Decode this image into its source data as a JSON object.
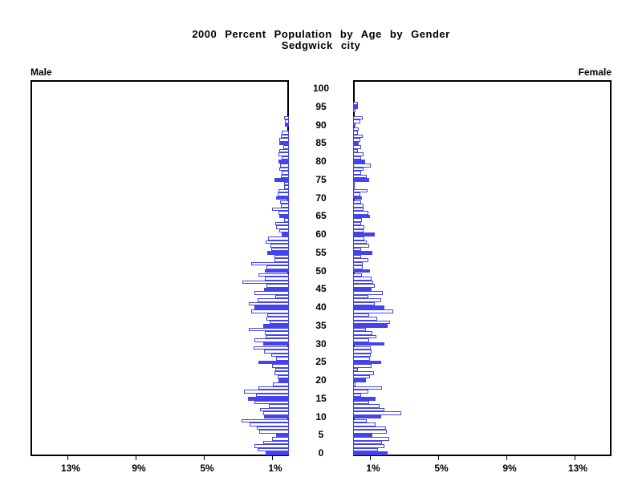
{
  "page": {
    "background": "#ffffff"
  },
  "chart_data": {
    "type": "bar",
    "subtype": "population-pyramid",
    "orientation": "horizontal",
    "title": "2000 Percent Population by Age by Gender",
    "subtitle": "Sedgwick city",
    "left_header": "Male",
    "right_header": "Female",
    "age_axis": {
      "min": 0,
      "max": 100,
      "tick_interval": 5,
      "tick_labels": [
        "0",
        "5",
        "10",
        "15",
        "20",
        "25",
        "30",
        "35",
        "40",
        "45",
        "50",
        "55",
        "60",
        "65",
        "70",
        "75",
        "80",
        "85",
        "90",
        "95",
        "100"
      ]
    },
    "percent_axis": {
      "ticks": [
        1,
        5,
        9,
        13
      ],
      "left_tick_labels": [
        "13%",
        "9%",
        "5%",
        "1%"
      ],
      "right_tick_labels": [
        "1%",
        "5%",
        "9%",
        "13%"
      ],
      "max_percent": 15.1
    },
    "legend": "none",
    "grid": "off",
    "highlight_rule": "bars for ages divisible by 5 are solid filled; other ages are white with blue outline",
    "colors": {
      "bar_outline": "#4444ee",
      "bar_fill_highlight": "#4444ee",
      "bar_fill_normal": "#ffffff",
      "axis": "#000000",
      "text": "#000000"
    },
    "ages": "index of each value equals single year of age, 0 through 100",
    "series": [
      {
        "name": "Male",
        "side": "left",
        "unit": "percent",
        "values": [
          1.38,
          1.82,
          2.04,
          1.49,
          1.0,
          0.75,
          1.76,
          1.9,
          2.32,
          2.79,
          1.44,
          1.51,
          1.71,
          1.18,
          2.0,
          2.39,
          1.91,
          2.64,
          1.8,
          0.94,
          0.6,
          0.66,
          0.86,
          0.78,
          0.97,
          1.8,
          0.75,
          1.05,
          1.44,
          2.05,
          1.5,
          2.0,
          1.38,
          1.41,
          2.33,
          1.49,
          1.13,
          1.33,
          1.28,
          2.22,
          2.01,
          2.35,
          1.84,
          0.78,
          2.04,
          1.46,
          1.33,
          2.73,
          1.41,
          1.8,
          1.4,
          1.3,
          2.22,
          0.85,
          0.87,
          1.25,
          1.05,
          1.07,
          1.38,
          1.21,
          0.42,
          0.55,
          0.77,
          0.78,
          0.27,
          0.58,
          0.63,
          0.99,
          0.47,
          0.5,
          0.77,
          0.67,
          0.61,
          0.28,
          0.27,
          0.85,
          0.49,
          0.44,
          0.55,
          0.52,
          0.63,
          0.42,
          0.63,
          0.55,
          0.34,
          0.55,
          0.55,
          0.45,
          0.42,
          0.0,
          0.24,
          0.24,
          0.28,
          0.0,
          0.0,
          0.0,
          0.0,
          0.0,
          0.0,
          0.0,
          0.0
        ]
      },
      {
        "name": "Female",
        "side": "right",
        "unit": "percent",
        "values": [
          2.04,
          1.46,
          1.85,
          1.69,
          2.12,
          1.14,
          1.99,
          1.93,
          1.33,
          0.78,
          1.65,
          2.82,
          1.85,
          1.57,
          0.94,
          1.33,
          0.47,
          0.88,
          1.7,
          0.12,
          0.75,
          1.0,
          1.2,
          0.3,
          1.1,
          1.65,
          1.0,
          1.05,
          1.1,
          1.02,
          1.83,
          0.94,
          1.35,
          1.14,
          0.75,
          2.01,
          2.16,
          1.41,
          0.94,
          2.37,
          1.83,
          1.25,
          1.65,
          0.89,
          1.73,
          1.07,
          1.29,
          1.19,
          1.1,
          0.5,
          0.97,
          0.58,
          0.55,
          0.9,
          0.47,
          1.14,
          0.47,
          0.94,
          0.81,
          0.64,
          1.26,
          0.6,
          0.66,
          0.45,
          0.53,
          1.0,
          0.88,
          0.63,
          0.61,
          0.49,
          0.53,
          0.44,
          0.86,
          0.1,
          0.1,
          0.94,
          0.78,
          0.45,
          0.6,
          1.02,
          0.69,
          0.45,
          0.63,
          0.3,
          0.47,
          0.33,
          0.4,
          0.56,
          0.28,
          0.35,
          0.15,
          0.4,
          0.55,
          0.0,
          0.15,
          0.28,
          0.3,
          0.0,
          0.0,
          0.0,
          0.0
        ]
      }
    ]
  }
}
